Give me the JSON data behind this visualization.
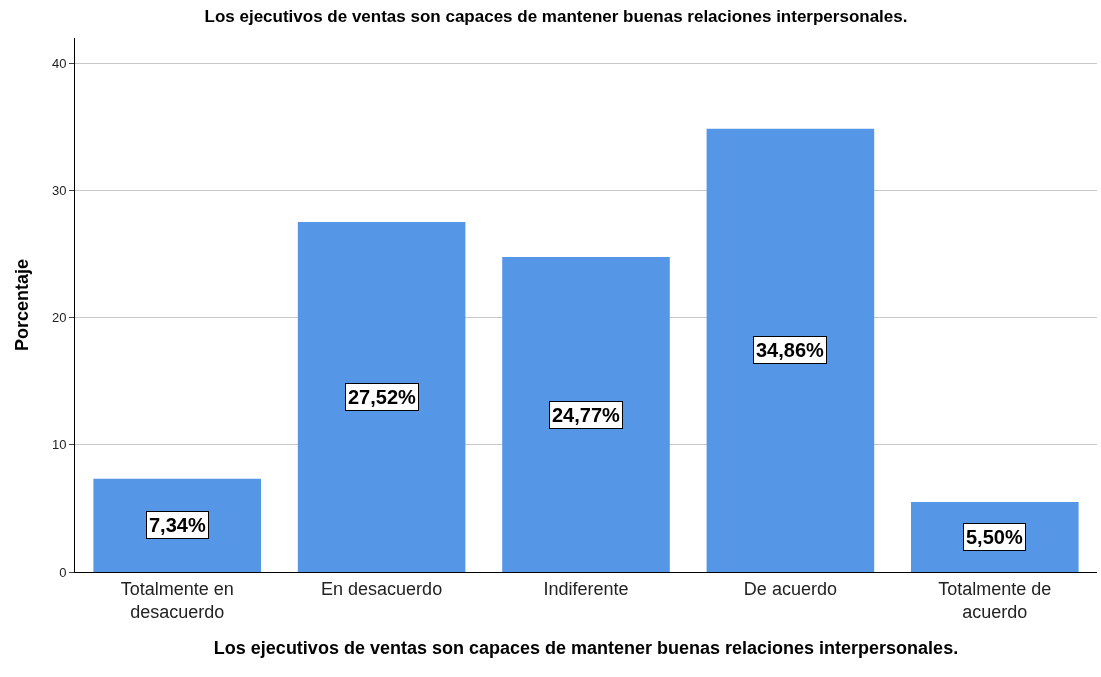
{
  "chart_data": {
    "type": "bar",
    "title": "Los ejecutivos de ventas son capaces de mantener buenas relaciones interpersonales.",
    "xlabel": "Los ejecutivos de ventas son capaces de mantener buenas relaciones interpersonales.",
    "ylabel": "Porcentaje",
    "categories": [
      "Totalmente en desacuerdo",
      "En desacuerdo",
      "Indiferente",
      "De acuerdo",
      "Totalmente de acuerdo"
    ],
    "values": [
      7.34,
      27.52,
      24.77,
      34.86,
      5.5
    ],
    "value_labels": [
      "7,34%",
      "27,52%",
      "24,77%",
      "34,86%",
      "5,50%"
    ],
    "color": "#5596e6",
    "ylim": [
      0,
      42
    ],
    "yticks": [
      0,
      10,
      20,
      30,
      40
    ],
    "grid": "y"
  }
}
